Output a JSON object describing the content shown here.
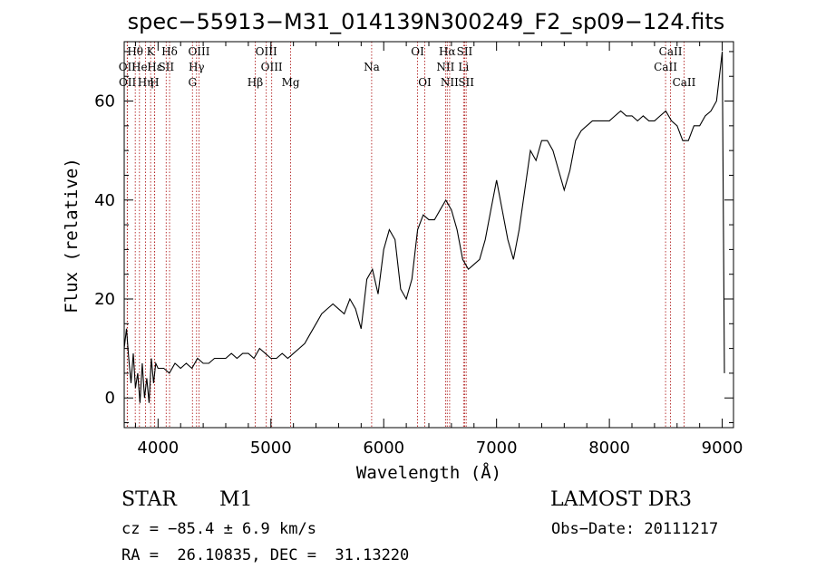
{
  "chart_data": {
    "type": "line",
    "title": "spec−55913−M31_014139N300249_F2_sp09−124.fits",
    "xlabel": "Wavelength (Å)",
    "ylabel": "Flux (relative)",
    "xlim": [
      3700,
      9100
    ],
    "ylim": [
      -6,
      72
    ],
    "xticks": [
      4000,
      5000,
      6000,
      7000,
      8000,
      9000
    ],
    "yticks": [
      0,
      20,
      40,
      60
    ],
    "grid": false,
    "spectrum_color": "#000000",
    "line_marker_color": "#b22222",
    "series": [
      {
        "x": [
          3700,
          3720,
          3740,
          3760,
          3780,
          3800,
          3820,
          3840,
          3860,
          3880,
          3900,
          3920,
          3940,
          3960,
          3980,
          4000,
          4050,
          4100,
          4150,
          4200,
          4250,
          4300,
          4350,
          4400,
          4450,
          4500,
          4550,
          4600,
          4650,
          4700,
          4750,
          4800,
          4850,
          4900,
          4950,
          5000,
          5050,
          5100,
          5150,
          5200,
          5250,
          5300,
          5350,
          5400,
          5450,
          5500,
          5550,
          5600,
          5650,
          5700,
          5750,
          5800,
          5850,
          5900,
          5950,
          6000,
          6050,
          6100,
          6150,
          6200,
          6250,
          6300,
          6350,
          6400,
          6450,
          6500,
          6550,
          6600,
          6650,
          6700,
          6750,
          6800,
          6850,
          6900,
          6950,
          7000,
          7050,
          7100,
          7150,
          7200,
          7250,
          7300,
          7350,
          7400,
          7450,
          7500,
          7550,
          7600,
          7650,
          7700,
          7750,
          7800,
          7850,
          7900,
          7950,
          8000,
          8050,
          8100,
          8150,
          8200,
          8250,
          8300,
          8350,
          8400,
          8450,
          8500,
          8550,
          8600,
          8650,
          8700,
          8750,
          8800,
          8850,
          8900,
          8950,
          8980,
          9000,
          9020
        ],
        "y": [
          10,
          14,
          8,
          3,
          9,
          2,
          5,
          -1,
          7,
          0,
          4,
          -1,
          8,
          3,
          7,
          6,
          6,
          5,
          7,
          6,
          7,
          6,
          8,
          7,
          7,
          8,
          8,
          8,
          9,
          8,
          9,
          9,
          8,
          10,
          9,
          8,
          8,
          9,
          8,
          9,
          10,
          11,
          13,
          15,
          17,
          18,
          19,
          18,
          17,
          20,
          18,
          14,
          24,
          26,
          21,
          30,
          34,
          32,
          22,
          20,
          24,
          34,
          37,
          36,
          36,
          38,
          40,
          38,
          34,
          28,
          26,
          27,
          28,
          32,
          38,
          44,
          38,
          32,
          28,
          34,
          42,
          50,
          48,
          52,
          52,
          50,
          46,
          42,
          46,
          52,
          54,
          55,
          56,
          56,
          56,
          56,
          57,
          58,
          57,
          57,
          56,
          57,
          56,
          56,
          57,
          58,
          56,
          55,
          52,
          52,
          55,
          55,
          57,
          58,
          60,
          66,
          70,
          5
        ]
      }
    ],
    "spectral_lines": [
      {
        "label": "Hθ",
        "x": 3798,
        "row": 1
      },
      {
        "label": "OII",
        "x": 3727,
        "row": 2
      },
      {
        "label": "OII",
        "x": 3729,
        "row": 3
      },
      {
        "label": "He",
        "x": 3835,
        "row": 2
      },
      {
        "label": "Hη",
        "x": 3889,
        "row": 3
      },
      {
        "label": "K",
        "x": 3934,
        "row": 1
      },
      {
        "label": "Hε",
        "x": 3970,
        "row": 2
      },
      {
        "label": "H",
        "x": 3968,
        "row": 3
      },
      {
        "label": "SII",
        "x": 4072,
        "row": 2
      },
      {
        "label": "Hδ",
        "x": 4102,
        "row": 1
      },
      {
        "label": "OIII",
        "x": 4363,
        "row": 1
      },
      {
        "label": "Hγ",
        "x": 4341,
        "row": 2
      },
      {
        "label": "G",
        "x": 4305,
        "row": 3
      },
      {
        "label": "Hβ",
        "x": 4861,
        "row": 3
      },
      {
        "label": "OIII",
        "x": 4959,
        "row": 1
      },
      {
        "label": "OIII",
        "x": 5007,
        "row": 2
      },
      {
        "label": "Mg",
        "x": 5175,
        "row": 3
      },
      {
        "label": "Na",
        "x": 5893,
        "row": 2
      },
      {
        "label": "OI",
        "x": 6300,
        "row": 1
      },
      {
        "label": "OI",
        "x": 6364,
        "row": 3
      },
      {
        "label": "Hα",
        "x": 6563,
        "row": 1
      },
      {
        "label": "NII",
        "x": 6548,
        "row": 2
      },
      {
        "label": "NII",
        "x": 6584,
        "row": 3
      },
      {
        "label": "SII",
        "x": 6717,
        "row": 1
      },
      {
        "label": "Li",
        "x": 6708,
        "row": 2
      },
      {
        "label": "SII",
        "x": 6731,
        "row": 3
      },
      {
        "label": "CaII",
        "x": 8542,
        "row": 1
      },
      {
        "label": "CaII",
        "x": 8498,
        "row": 2
      },
      {
        "label": "CaII",
        "x": 8662,
        "row": 3
      }
    ]
  },
  "info": {
    "class": "STAR",
    "subclass": "M1",
    "survey": "LAMOST DR3",
    "cz": "cz = −85.4 ± 6.9 km/s",
    "obs_date": "Obs−Date: 20111217",
    "coords": "RA =  26.10835, DEC =  31.13220"
  }
}
